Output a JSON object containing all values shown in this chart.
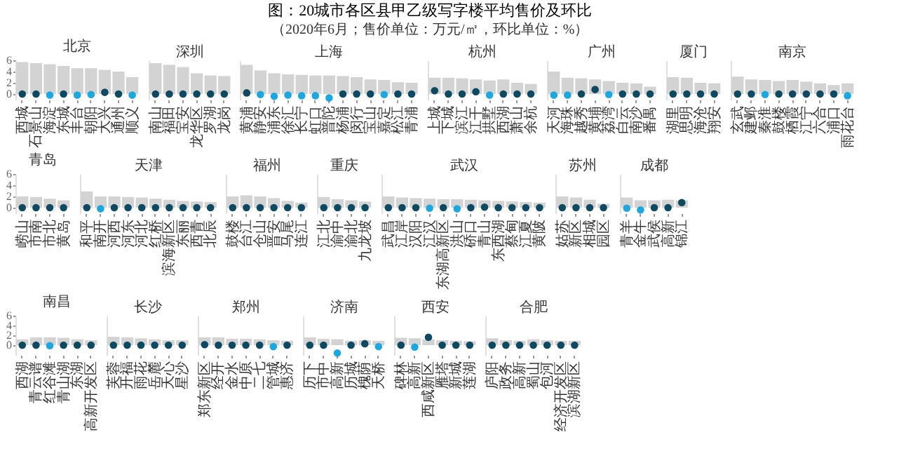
{
  "chart_data": [
    {
      "type": "other",
      "title": "图：20城市各区县甲乙级写字楼平均售价及环比",
      "subtitle": "（2020年6月；售价单位：万元/㎡，环比单位：%）"
    },
    {
      "type": "bar",
      "title": "北京",
      "categories": [
        "西城",
        "石景山",
        "海淀",
        "东城",
        "丰台",
        "朝阳",
        "大兴",
        "通州",
        "顺义"
      ],
      "marker": "circle",
      "ylim": [
        -1,
        6
      ],
      "yticks": [
        0,
        2,
        4,
        6
      ],
      "series": [
        {
          "type": "bar",
          "color": "#d3d3d3",
          "values": [
            5.7,
            5.5,
            5.3,
            5.0,
            4.6,
            4.6,
            4.3,
            4.0,
            3.0
          ]
        },
        {
          "type": "scatter",
          "colors": [
            "#0d4a62",
            "#0d4a62",
            "#1ca7df",
            "#0d4a62",
            "#1ca7df",
            "#1ca7df",
            "#0d4a62",
            "#0d4a62",
            "#1ca7df"
          ],
          "values": [
            0,
            0,
            -0.2,
            0,
            -0.2,
            -0.1,
            0.3,
            0,
            -0.2
          ]
        }
      ]
    },
    {
      "type": "bar",
      "title": "深圳",
      "categories": [
        "南山",
        "福田",
        "宝安",
        "龙华区",
        "罗湖",
        "龙岗"
      ],
      "marker": "circle",
      "ylim": [
        -1,
        6
      ],
      "tick_labels": "x",
      "series": [
        {
          "type": "bar",
          "color": "#d3d3d3",
          "values": [
            5.5,
            5.2,
            4.8,
            3.7,
            3.3,
            3.2
          ]
        },
        {
          "type": "scatter",
          "colors": [
            "#0d4a62",
            "#0d4a62",
            "#0d4a62",
            "#0d4a62",
            "#0d4a62",
            "#0d4a62"
          ],
          "values": [
            0,
            0,
            0,
            0,
            0,
            0
          ]
        }
      ]
    },
    {
      "type": "bar",
      "title": "上海",
      "categories": [
        "黄浦",
        "静安",
        "浦东",
        "徐汇",
        "长宁",
        "虹口",
        "普陀",
        "杨浦",
        "闵行",
        "宝山",
        "嘉定",
        "松江",
        "青浦"
      ],
      "marker": "circle",
      "ylim": [
        -1,
        6
      ],
      "tick_labels": "x",
      "series": [
        {
          "type": "bar",
          "color": "#d3d3d3",
          "values": [
            5.2,
            4.2,
            3.7,
            3.5,
            3.4,
            3.3,
            3.3,
            3.2,
            3.0,
            2.6,
            2.5,
            2.1,
            2.0
          ]
        },
        {
          "type": "scatter",
          "colors": [
            "#0d4a62",
            "#1ca7df",
            "#1ca7df",
            "#1ca7df",
            "#1ca7df",
            "#1ca7df",
            "#1ca7df",
            "#0d4a62",
            "#0d4a62",
            "#0d4a62",
            "#1ca7df",
            "#0d4a62",
            "#0d4a62"
          ],
          "values": [
            0.2,
            -0.1,
            -0.4,
            -0.2,
            -0.3,
            -0.3,
            -0.7,
            0,
            0,
            0,
            -0.1,
            0,
            0
          ]
        }
      ]
    },
    {
      "type": "bar",
      "title": "杭州",
      "categories": [
        "上城",
        "下城",
        "滨江",
        "江干",
        "拱墅",
        "西湖",
        "萧山",
        "余杭"
      ],
      "marker": "circle",
      "ylim": [
        -1,
        6
      ],
      "tick_labels": "x",
      "series": [
        {
          "type": "bar",
          "color": "#d3d3d3",
          "values": [
            2.9,
            2.9,
            2.8,
            2.6,
            2.4,
            2.6,
            2.0,
            1.8
          ]
        },
        {
          "type": "scatter",
          "colors": [
            "#0d4a62",
            "#0d4a62",
            "#0d4a62",
            "#0d4a62",
            "#1ca7df",
            "#0d4a62",
            "#0d4a62",
            "#0d4a62"
          ],
          "values": [
            0.6,
            0,
            0,
            0.4,
            -0.2,
            0,
            0,
            0
          ]
        }
      ]
    },
    {
      "type": "bar",
      "title": "广州",
      "categories": [
        "天河",
        "海珠",
        "越秀",
        "黄埔",
        "荔湾",
        "白云",
        "南沙",
        "番禺"
      ],
      "marker": "circle",
      "ylim": [
        -1,
        6
      ],
      "tick_labels": "x",
      "series": [
        {
          "type": "bar",
          "color": "#d3d3d3",
          "values": [
            4.0,
            2.9,
            2.8,
            2.6,
            2.3,
            2.0,
            1.9,
            1.3
          ]
        },
        {
          "type": "scatter",
          "colors": [
            "#1ca7df",
            "#1ca7df",
            "#0d4a62",
            "#0d4a62",
            "#1ca7df",
            "#0d4a62",
            "#0d4a62",
            "#0d4a62"
          ],
          "values": [
            -0.2,
            -0.2,
            0,
            0.8,
            -0.1,
            0,
            0,
            0
          ]
        }
      ]
    },
    {
      "type": "bar",
      "title": "厦门",
      "categories": [
        "湖里",
        "思明",
        "海沧",
        "翔安"
      ],
      "marker": "circle",
      "ylim": [
        -1,
        6
      ],
      "tick_labels": "x",
      "series": [
        {
          "type": "bar",
          "color": "#d3d3d3",
          "values": [
            3.0,
            2.9,
            2.0,
            1.9
          ]
        },
        {
          "type": "scatter",
          "colors": [
            "#0d4a62",
            "#0d4a62",
            "#0d4a62",
            "#0d4a62"
          ],
          "values": [
            0,
            0,
            0,
            0
          ]
        }
      ]
    },
    {
      "type": "bar",
      "title": "南京",
      "categories": [
        "玄武",
        "建邺",
        "秦淮",
        "鼓楼",
        "栖霞",
        "江宁",
        "六合",
        "浦口",
        "雨花台"
      ],
      "marker": "circle",
      "ylim": [
        -1,
        6
      ],
      "tick_labels": "x",
      "series": [
        {
          "type": "bar",
          "color": "#d3d3d3",
          "values": [
            3.1,
            2.6,
            2.5,
            2.3,
            2.5,
            2.2,
            1.9,
            1.6,
            1.9
          ]
        },
        {
          "type": "scatter",
          "colors": [
            "#0d4a62",
            "#0d4a62",
            "#1ca7df",
            "#0d4a62",
            "#0d4a62",
            "#0d4a62",
            "#0d4a62",
            "#0d4a62",
            "#1ca7df"
          ],
          "values": [
            0,
            0,
            -0.1,
            0,
            0,
            0,
            0,
            0,
            -0.3
          ]
        }
      ]
    },
    {
      "type": "bar",
      "title": "青岛",
      "categories": [
        "崂山",
        "市南",
        "市北",
        "黄岛"
      ],
      "marker": "circle",
      "ylim": [
        -1,
        6
      ],
      "yticks": [
        0,
        2,
        4,
        6
      ],
      "series": [
        {
          "type": "bar",
          "color": "#d3d3d3",
          "values": [
            2.0,
            1.9,
            1.6,
            1.3
          ]
        },
        {
          "type": "scatter",
          "colors": [
            "#0d4a62",
            "#0d4a62",
            "#0d4a62",
            "#0d4a62"
          ],
          "values": [
            0,
            0,
            0,
            0
          ]
        }
      ]
    },
    {
      "type": "bar",
      "title": "天津",
      "categories": [
        "和平",
        "南开",
        "河西",
        "河东",
        "河北",
        "红桥",
        "滨海新区",
        "东丽",
        "西青",
        "北辰"
      ],
      "marker": "circle",
      "ylim": [
        -1,
        6
      ],
      "tick_labels": "x",
      "series": [
        {
          "type": "bar",
          "color": "#d3d3d3",
          "values": [
            2.9,
            2.0,
            2.0,
            1.9,
            1.8,
            1.6,
            1.4,
            1.2,
            1.1,
            1.0
          ]
        },
        {
          "type": "scatter",
          "colors": [
            "#0d4a62",
            "#1ca7df",
            "#0d4a62",
            "#0d4a62",
            "#0d4a62",
            "#0d4a62",
            "#0d4a62",
            "#0d4a62",
            "#0d4a62",
            "#0d4a62"
          ],
          "values": [
            0,
            -0.2,
            0,
            0,
            0,
            0,
            0,
            0,
            0,
            0
          ]
        }
      ]
    },
    {
      "type": "bar",
      "title": "福州",
      "categories": [
        "鼓楼",
        "台江",
        "仓山",
        "晋安",
        "马尾",
        "连江"
      ],
      "marker": "circle",
      "ylim": [
        -1,
        6
      ],
      "tick_labels": "x",
      "series": [
        {
          "type": "bar",
          "color": "#d3d3d3",
          "values": [
            2.0,
            2.2,
            2.0,
            1.7,
            1.2,
            0.9
          ]
        },
        {
          "type": "scatter",
          "colors": [
            "#0d4a62",
            "#0d4a62",
            "#0d4a62",
            "#0d4a62",
            "#0d4a62",
            "#0d4a62"
          ],
          "values": [
            0,
            0,
            0,
            0,
            0,
            0
          ]
        }
      ]
    },
    {
      "type": "bar",
      "title": "重庆",
      "categories": [
        "江北",
        "渝中",
        "渝北",
        "九龙坡"
      ],
      "marker": "circle",
      "ylim": [
        -1,
        6
      ],
      "tick_labels": "x",
      "series": [
        {
          "type": "bar",
          "color": "#d3d3d3",
          "values": [
            1.9,
            1.5,
            1.3,
            1.1
          ]
        },
        {
          "type": "scatter",
          "colors": [
            "#0d4a62",
            "#0d4a62",
            "#0d4a62",
            "#0d4a62"
          ],
          "values": [
            0,
            0,
            0,
            0
          ]
        }
      ]
    },
    {
      "type": "bar",
      "title": "武汉",
      "categories": [
        "武昌",
        "江岸",
        "汉阳",
        "江汉",
        "东湖高新区",
        "洪山",
        "硚口",
        "青山",
        "东西湖",
        "蔡甸",
        "江夏",
        "黄陂"
      ],
      "marker": "circle",
      "ylim": [
        -1,
        6
      ],
      "tick_labels": "x",
      "series": [
        {
          "type": "bar",
          "color": "#d3d3d3",
          "values": [
            2.0,
            1.8,
            1.7,
            1.6,
            1.5,
            1.5,
            1.4,
            1.3,
            1.2,
            1.1,
            1.0,
            0.9
          ]
        },
        {
          "type": "scatter",
          "colors": [
            "#0d4a62",
            "#0d4a62",
            "#0d4a62",
            "#1ca7df",
            "#0d4a62",
            "#1ca7df",
            "#0d4a62",
            "#0d4a62",
            "#0d4a62",
            "#0d4a62",
            "#0d4a62",
            "#0d4a62"
          ],
          "values": [
            0,
            0,
            0,
            -0.1,
            0,
            -0.2,
            0,
            0.1,
            0,
            0,
            0,
            0
          ]
        }
      ]
    },
    {
      "type": "bar",
      "title": "苏州",
      "categories": [
        "姑苏",
        "新区",
        "相城",
        "园区"
      ],
      "marker": "circle",
      "ylim": [
        -1,
        6
      ],
      "tick_labels": "x",
      "series": [
        {
          "type": "bar",
          "color": "#d3d3d3",
          "values": [
            2.0,
            1.8,
            1.4,
            0.7
          ]
        },
        {
          "type": "scatter",
          "colors": [
            "#0d4a62",
            "#0d4a62",
            "#0d4a62",
            "#0d4a62"
          ],
          "values": [
            0,
            0,
            0,
            0
          ]
        }
      ]
    },
    {
      "type": "bar",
      "title": "成都",
      "categories": [
        "青羊",
        "金牛",
        "武侯",
        "高新",
        "锦江"
      ],
      "marker": "circle",
      "ylim": [
        -1,
        6
      ],
      "tick_labels": "x",
      "series": [
        {
          "type": "bar",
          "color": "#d3d3d3",
          "values": [
            1.8,
            1.3,
            1.3,
            1.4,
            1.3
          ]
        },
        {
          "type": "scatter",
          "colors": [
            "#1ca7df",
            "#1ca7df",
            "#0d4a62",
            "#0d4a62",
            "#0d4a62"
          ],
          "values": [
            -0.1,
            -0.4,
            0,
            0,
            0.9
          ]
        }
      ]
    },
    {
      "type": "bar",
      "title": "南昌",
      "categories": [
        "西湖",
        "青云谱",
        "红谷滩",
        "青山湖",
        "东湖",
        "高新开发区"
      ],
      "marker": "circle",
      "ylim": [
        -2,
        6
      ],
      "yticks": [
        0,
        2,
        4,
        6
      ],
      "series": [
        {
          "type": "bar",
          "color": "#d3d3d3",
          "values": [
            1.2,
            1.6,
            1.6,
            1.5,
            1.2,
            1.0
          ]
        },
        {
          "type": "scatter",
          "colors": [
            "#0d4a62",
            "#0d4a62",
            "#1ca7df",
            "#0d4a62",
            "#0d4a62",
            "#0d4a62"
          ],
          "values": [
            0,
            0,
            -0.1,
            0,
            0,
            0
          ]
        }
      ]
    },
    {
      "type": "bar",
      "title": "长沙",
      "categories": [
        "芙蓉",
        "开福",
        "雨花",
        "岳麓",
        "天心",
        "星沙"
      ],
      "marker": "circle",
      "ylim": [
        -2,
        6
      ],
      "tick_labels": "x",
      "series": [
        {
          "type": "bar",
          "color": "#d3d3d3",
          "values": [
            1.7,
            1.6,
            1.4,
            1.2,
            1.0,
            1.0
          ]
        },
        {
          "type": "scatter",
          "colors": [
            "#0d4a62",
            "#0d4a62",
            "#0d4a62",
            "#0d4a62",
            "#0d4a62",
            "#0d4a62"
          ],
          "values": [
            0,
            0,
            0,
            0,
            0,
            0
          ]
        }
      ]
    },
    {
      "type": "bar",
      "title": "郑州",
      "categories": [
        "郑东新区",
        "经开",
        "金水",
        "中原",
        "二七",
        "管城",
        "惠济"
      ],
      "marker": "circle",
      "ylim": [
        -2,
        6
      ],
      "tick_labels": "x",
      "series": [
        {
          "type": "bar",
          "color": "#d3d3d3",
          "values": [
            1.6,
            1.6,
            1.3,
            1.3,
            1.2,
            1.0,
            0.9
          ]
        },
        {
          "type": "scatter",
          "colors": [
            "#0d4a62",
            "#0d4a62",
            "#0d4a62",
            "#0d4a62",
            "#0d4a62",
            "#1ca7df",
            "#0d4a62"
          ],
          "values": [
            0.1,
            0,
            0,
            0,
            0,
            -0.3,
            0
          ]
        }
      ]
    },
    {
      "type": "bar",
      "title": "济南",
      "categories": [
        "历下",
        "市中",
        "高新",
        "历城",
        "槐荫",
        "天桥"
      ],
      "marker": "circle",
      "ylim": [
        -2,
        6
      ],
      "tick_labels": "x",
      "series": [
        {
          "type": "bar",
          "color": "#d3d3d3",
          "values": [
            1.6,
            1.3,
            1.2,
            0.9,
            1.0,
            0.9
          ]
        },
        {
          "type": "scatter",
          "colors": [
            "#0d4a62",
            "#0d4a62",
            "#1ca7df",
            "#0d4a62",
            "#0d4a62",
            "#1ca7df"
          ],
          "values": [
            0,
            0,
            -1.6,
            0,
            0.3,
            -0.3
          ]
        }
      ]
    },
    {
      "type": "bar",
      "title": "西安",
      "categories": [
        "碑林",
        "高新",
        "西咸新区",
        "雁塔",
        "新城",
        "莲湖"
      ],
      "marker": "circle",
      "ylim": [
        -2,
        6
      ],
      "tick_labels": "x",
      "series": [
        {
          "type": "bar",
          "color": "#d3d3d3",
          "values": [
            1.5,
            1.4,
            1.2,
            1.0,
            0.9,
            0.8
          ]
        },
        {
          "type": "scatter",
          "colors": [
            "#0d4a62",
            "#1ca7df",
            "#0d4a62",
            "#0d4a62",
            "#0d4a62",
            "#0d4a62"
          ],
          "values": [
            0,
            -0.4,
            1.6,
            0,
            0,
            0
          ]
        }
      ]
    },
    {
      "type": "bar",
      "title": "合肥",
      "categories": [
        "庐阳",
        "政务",
        "高新",
        "蜀山",
        "包河",
        "经济开发区",
        "滨湖新区"
      ],
      "marker": "circle",
      "ylim": [
        -2,
        6
      ],
      "tick_labels": "x",
      "series": [
        {
          "type": "bar",
          "color": "#d3d3d3",
          "values": [
            1.4,
            1.0,
            0.9,
            1.2,
            1.0,
            0.9,
            0.9
          ]
        },
        {
          "type": "scatter",
          "colors": [
            "#0d4a62",
            "#0d4a62",
            "#0d4a62",
            "#0d4a62",
            "#0d4a62",
            "#0d4a62",
            "#0d4a62"
          ],
          "values": [
            0,
            0,
            0,
            0,
            0,
            0,
            0
          ]
        }
      ]
    }
  ]
}
